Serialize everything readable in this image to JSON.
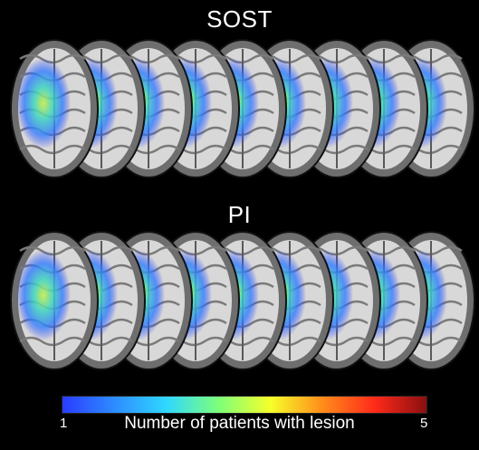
{
  "panels": [
    {
      "id": "top",
      "title": "SOST",
      "slice_count": 9
    },
    {
      "id": "bottom",
      "title": "PI",
      "slice_count": 9
    }
  ],
  "colorbar": {
    "min_label": "1",
    "max_label": "5",
    "label": "Number of patients with lesion",
    "colors": [
      "#2a3cff",
      "#2d8cff",
      "#2fd8ff",
      "#7dff7a",
      "#f6ff2a",
      "#ff8c1a",
      "#ff2a1a",
      "#8a0f10"
    ]
  }
}
